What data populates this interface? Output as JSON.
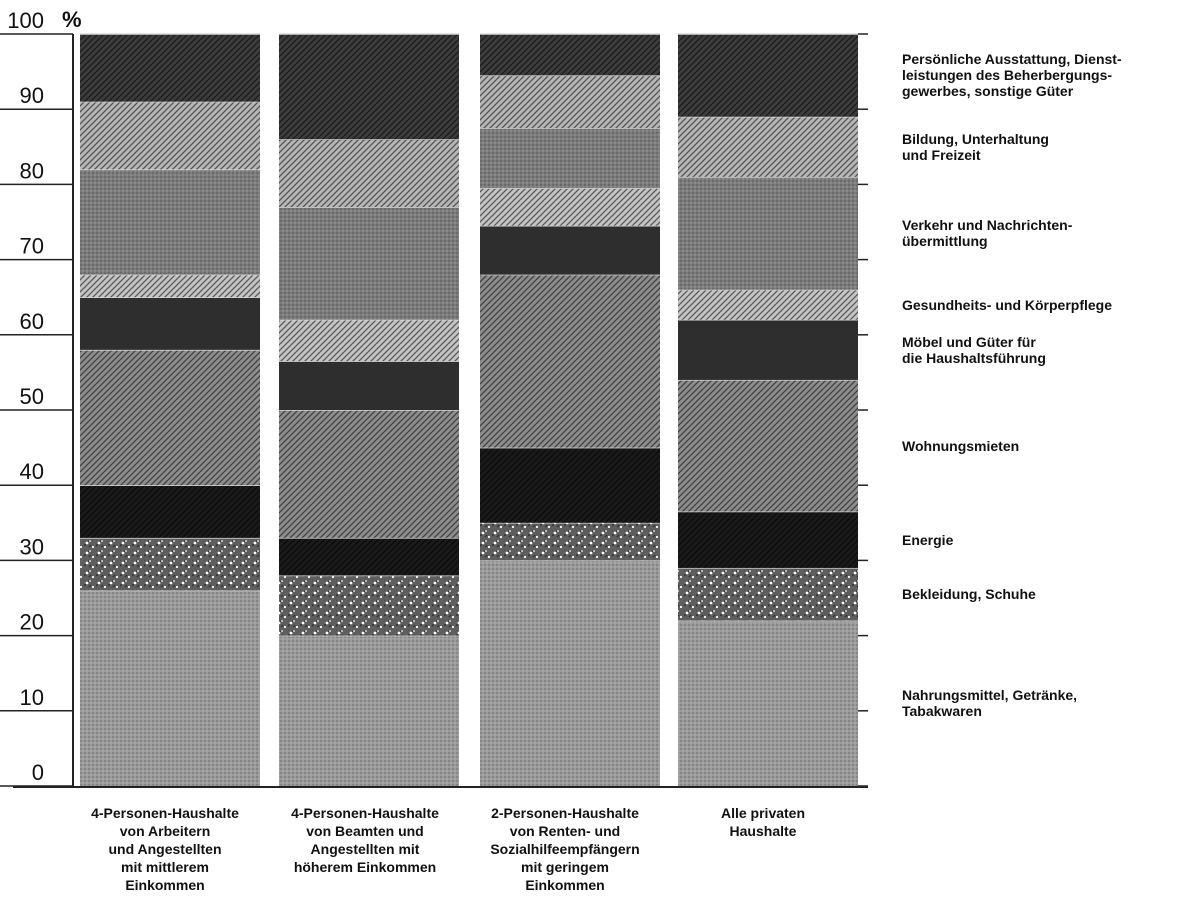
{
  "chart_data": {
    "type": "bar",
    "stacked": true,
    "ylabel": "%",
    "ylim": [
      0,
      100
    ],
    "yticks": [
      "0",
      "10",
      "20",
      "30",
      "40",
      "50",
      "60",
      "70",
      "80",
      "90",
      "100"
    ],
    "categories": [
      "4-Personen-Haushalte\nvon Arbeitern\nund Angestellten\nmit mittlerem\nEinkommen",
      "4-Personen-Haushalte\nvon Beamten und\nAngestellten mit\nhöherem Einkommen",
      "2-Personen-Haushalte\nvon Renten- und\nSozialhilfeempfängern\nmit geringem\nEinkommen",
      "Alle privaten\nHaushalte"
    ],
    "series": [
      {
        "name": "Nahrungsmittel, Getränke,\nTabakwaren",
        "values": [
          26,
          20,
          30,
          22
        ],
        "color": "#9a9a9a",
        "pattern": "dots"
      },
      {
        "name": "Bekleidung, Schuhe",
        "values": [
          7,
          8,
          5,
          7
        ],
        "color": "#5e5e5e",
        "pattern": "speckle"
      },
      {
        "name": "Energie",
        "values": [
          7,
          5,
          10,
          7.5
        ],
        "color": "#1a1a1a",
        "pattern": "hatch"
      },
      {
        "name": "Wohnungsmieten",
        "values": [
          18,
          17,
          23,
          17.5
        ],
        "color": "#8d8d8d",
        "pattern": "hatch"
      },
      {
        "name": "Möbel und Güter für\ndie Haushaltsführung",
        "values": [
          7,
          6.5,
          6.5,
          8
        ],
        "color": "#2e2e2e",
        "pattern": "solid"
      },
      {
        "name": "Gesundheits- und Körperpflege",
        "values": [
          3,
          5.5,
          5,
          4
        ],
        "color": "#c4c4c4",
        "pattern": "hatch"
      },
      {
        "name": "Verkehr und Nachrichten-\nübermittlung",
        "values": [
          14,
          15,
          8,
          15
        ],
        "color": "#7c7c7c",
        "pattern": "dots"
      },
      {
        "name": "Bildung, Unterhaltung\nund Freizeit",
        "values": [
          9,
          9,
          7,
          8
        ],
        "color": "#b6b6b6",
        "pattern": "hatch"
      },
      {
        "name": "Persönliche Ausstattung, Dienst-\nleistungen des Beherbergungs-\ngewerbes, sonstige Güter",
        "values": [
          9,
          14,
          5.5,
          11
        ],
        "color": "#3c3c3c",
        "pattern": "hatch"
      }
    ]
  }
}
